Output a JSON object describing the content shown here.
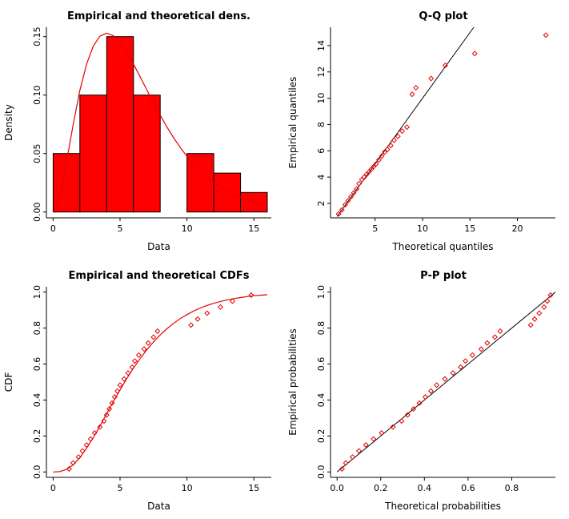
{
  "figure": {
    "background": "#ffffff"
  },
  "colors": {
    "bar_fill": "#ff0000",
    "bar_stroke": "#000000",
    "curve_red": "#e60000",
    "point_red": "#e60000",
    "line_black": "#000000",
    "axis": "#000000"
  },
  "chart_data": [
    {
      "type": "bar",
      "title": "Empirical and theoretical dens.",
      "xlabel": "Data",
      "ylabel": "Density",
      "xlim": [
        -0.5,
        16.3
      ],
      "ylim": [
        -0.005,
        0.158
      ],
      "xticks": [
        0,
        5,
        10,
        15
      ],
      "xtick_labels": [
        "0",
        "5",
        "10",
        "15"
      ],
      "yticks": [
        0,
        0.05,
        0.1,
        0.15
      ],
      "ytick_labels": [
        "0.00",
        "0.05",
        "0.10",
        "0.15"
      ],
      "bar_fill": "#ff0000",
      "bar_stroke": "#000000",
      "bars": [
        {
          "x0": 0,
          "x1": 2,
          "h": 0.05
        },
        {
          "x0": 2,
          "x1": 4,
          "h": 0.1
        },
        {
          "x0": 4,
          "x1": 6,
          "h": 0.15
        },
        {
          "x0": 6,
          "x1": 8,
          "h": 0.1
        },
        {
          "x0": 10,
          "x1": 12,
          "h": 0.05
        },
        {
          "x0": 12,
          "x1": 14,
          "h": 0.0333
        },
        {
          "x0": 14,
          "x1": 16,
          "h": 0.0167
        }
      ],
      "curve_color": "#e60000",
      "curve": [
        [
          0,
          0
        ],
        [
          0.5,
          0.0138
        ],
        [
          1,
          0.0428
        ],
        [
          1.5,
          0.075
        ],
        [
          2,
          0.104
        ],
        [
          2.5,
          0.1264
        ],
        [
          3,
          0.1418
        ],
        [
          3.5,
          0.1504
        ],
        [
          4,
          0.1529
        ],
        [
          4.5,
          0.1508
        ],
        [
          5,
          0.145
        ],
        [
          5.5,
          0.1365
        ],
        [
          6,
          0.1266
        ],
        [
          6.5,
          0.1157
        ],
        [
          7,
          0.1045
        ],
        [
          7.5,
          0.0933
        ],
        [
          8,
          0.0828
        ],
        [
          8.5,
          0.0728
        ],
        [
          9,
          0.0635
        ],
        [
          9.5,
          0.0551
        ],
        [
          10,
          0.0476
        ],
        [
          10.5,
          0.0409
        ],
        [
          11,
          0.0349
        ],
        [
          11.5,
          0.0297
        ],
        [
          12,
          0.0252
        ],
        [
          12.5,
          0.0214
        ],
        [
          13,
          0.018
        ],
        [
          13.5,
          0.015
        ],
        [
          14,
          0.0127
        ],
        [
          14.5,
          0.0105
        ],
        [
          15,
          0.0088
        ],
        [
          15.5,
          0.0073
        ],
        [
          16,
          0.0061
        ]
      ]
    },
    {
      "type": "scatter",
      "title": "Q-Q plot",
      "xlabel": "Theoretical quantiles",
      "ylabel": "Empirical quantiles",
      "xlim": [
        0.3,
        24
      ],
      "ylim": [
        0.9,
        15.4
      ],
      "xticks": [
        5,
        10,
        15,
        20
      ],
      "xtick_labels": [
        "5",
        "10",
        "15",
        "20"
      ],
      "yticks": [
        2,
        4,
        6,
        8,
        10,
        12,
        14
      ],
      "ytick_labels": [
        "2",
        "4",
        "6",
        "8",
        "10",
        "12",
        "14"
      ],
      "line_color": "#000000",
      "line": [
        [
          1,
          1
        ],
        [
          15.4,
          15.4
        ]
      ],
      "point_color": "#e60000",
      "points": [
        [
          1.15,
          1.2
        ],
        [
          1.5,
          1.5
        ],
        [
          1.85,
          1.9
        ],
        [
          2.15,
          2.2
        ],
        [
          2.45,
          2.5
        ],
        [
          2.75,
          2.8
        ],
        [
          3.05,
          3.1
        ],
        [
          3.3,
          3.5
        ],
        [
          3.6,
          3.8
        ],
        [
          3.85,
          4.0
        ],
        [
          4.1,
          4.2
        ],
        [
          4.35,
          4.4
        ],
        [
          4.6,
          4.6
        ],
        [
          4.85,
          4.8
        ],
        [
          5.1,
          5.0
        ],
        [
          5.4,
          5.3
        ],
        [
          5.7,
          5.6
        ],
        [
          6.0,
          5.9
        ],
        [
          6.3,
          6.1
        ],
        [
          6.65,
          6.4
        ],
        [
          7.0,
          6.8
        ],
        [
          7.4,
          7.1
        ],
        [
          7.85,
          7.5
        ],
        [
          8.35,
          7.8
        ],
        [
          8.9,
          10.3
        ],
        [
          9.3,
          10.8
        ],
        [
          10.9,
          11.5
        ],
        [
          12.4,
          12.5
        ],
        [
          15.5,
          13.4
        ],
        [
          23.0,
          14.8
        ]
      ]
    },
    {
      "type": "scatter",
      "title": "Empirical and theoretical CDFs",
      "xlabel": "Data",
      "ylabel": "CDF",
      "xlim": [
        -0.5,
        16.3
      ],
      "ylim": [
        -0.03,
        1.03
      ],
      "xticks": [
        0,
        5,
        10,
        15
      ],
      "xtick_labels": [
        "0",
        "5",
        "10",
        "15"
      ],
      "yticks": [
        0,
        0.2,
        0.4,
        0.6,
        0.8,
        1.0
      ],
      "ytick_labels": [
        "0.0",
        "0.2",
        "0.4",
        "0.6",
        "0.8",
        "1.0"
      ],
      "curve_color": "#e60000",
      "curve": [
        [
          0,
          0
        ],
        [
          0.5,
          0.002
        ],
        [
          1,
          0.014
        ],
        [
          1.5,
          0.04
        ],
        [
          2,
          0.08
        ],
        [
          2.5,
          0.132
        ],
        [
          3,
          0.191
        ],
        [
          3.5,
          0.256
        ],
        [
          4,
          0.323
        ],
        [
          4.5,
          0.391
        ],
        [
          5,
          0.456
        ],
        [
          5.5,
          0.519
        ],
        [
          6,
          0.577
        ],
        [
          6.5,
          0.63
        ],
        [
          7,
          0.679
        ],
        [
          7.5,
          0.723
        ],
        [
          8,
          0.762
        ],
        [
          8.5,
          0.796
        ],
        [
          9,
          0.826
        ],
        [
          9.5,
          0.853
        ],
        [
          10,
          0.875
        ],
        [
          10.5,
          0.895
        ],
        [
          11,
          0.912
        ],
        [
          11.5,
          0.926
        ],
        [
          12,
          0.938
        ],
        [
          12.5,
          0.948
        ],
        [
          13,
          0.957
        ],
        [
          13.5,
          0.964
        ],
        [
          14,
          0.97
        ],
        [
          14.5,
          0.975
        ],
        [
          15,
          0.98
        ],
        [
          15.5,
          0.983
        ],
        [
          16,
          0.986
        ]
      ],
      "point_color": "#e60000",
      "points": [
        [
          1.2,
          0.017
        ],
        [
          1.5,
          0.05
        ],
        [
          1.9,
          0.083
        ],
        [
          2.2,
          0.117
        ],
        [
          2.5,
          0.15
        ],
        [
          2.8,
          0.183
        ],
        [
          3.1,
          0.217
        ],
        [
          3.5,
          0.25
        ],
        [
          3.8,
          0.283
        ],
        [
          4.0,
          0.317
        ],
        [
          4.2,
          0.35
        ],
        [
          4.4,
          0.383
        ],
        [
          4.6,
          0.417
        ],
        [
          4.8,
          0.45
        ],
        [
          5.0,
          0.483
        ],
        [
          5.3,
          0.517
        ],
        [
          5.6,
          0.55
        ],
        [
          5.9,
          0.583
        ],
        [
          6.1,
          0.617
        ],
        [
          6.4,
          0.65
        ],
        [
          6.8,
          0.683
        ],
        [
          7.1,
          0.717
        ],
        [
          7.5,
          0.75
        ],
        [
          7.8,
          0.783
        ],
        [
          10.3,
          0.817
        ],
        [
          10.8,
          0.85
        ],
        [
          11.5,
          0.883
        ],
        [
          12.5,
          0.917
        ],
        [
          13.4,
          0.95
        ],
        [
          14.8,
          0.983
        ]
      ]
    },
    {
      "type": "scatter",
      "title": "P-P plot",
      "xlabel": "Theoretical probabilities",
      "ylabel": "Empirical probabilities",
      "xlim": [
        -0.03,
        1.0
      ],
      "ylim": [
        -0.03,
        1.03
      ],
      "xticks": [
        0,
        0.2,
        0.4,
        0.6,
        0.8
      ],
      "xtick_labels": [
        "0.0",
        "0.2",
        "0.4",
        "0.6",
        "0.8"
      ],
      "yticks": [
        0,
        0.2,
        0.4,
        0.6,
        0.8,
        1.0
      ],
      "ytick_labels": [
        "0.0",
        "0.2",
        "0.4",
        "0.6",
        "0.8",
        "1.0"
      ],
      "line_color": "#000000",
      "line": [
        [
          0,
          0
        ],
        [
          1,
          1
        ]
      ],
      "point_color": "#e60000",
      "points": [
        [
          0.023,
          0.017
        ],
        [
          0.04,
          0.05
        ],
        [
          0.071,
          0.083
        ],
        [
          0.1,
          0.117
        ],
        [
          0.132,
          0.15
        ],
        [
          0.167,
          0.183
        ],
        [
          0.204,
          0.217
        ],
        [
          0.256,
          0.25
        ],
        [
          0.296,
          0.283
        ],
        [
          0.323,
          0.317
        ],
        [
          0.35,
          0.35
        ],
        [
          0.377,
          0.383
        ],
        [
          0.404,
          0.417
        ],
        [
          0.43,
          0.45
        ],
        [
          0.456,
          0.483
        ],
        [
          0.494,
          0.517
        ],
        [
          0.531,
          0.55
        ],
        [
          0.566,
          0.583
        ],
        [
          0.588,
          0.617
        ],
        [
          0.62,
          0.65
        ],
        [
          0.66,
          0.683
        ],
        [
          0.688,
          0.717
        ],
        [
          0.723,
          0.75
        ],
        [
          0.747,
          0.783
        ],
        [
          0.887,
          0.817
        ],
        [
          0.905,
          0.85
        ],
        [
          0.926,
          0.883
        ],
        [
          0.948,
          0.917
        ],
        [
          0.963,
          0.95
        ],
        [
          0.978,
          0.983
        ]
      ]
    }
  ]
}
